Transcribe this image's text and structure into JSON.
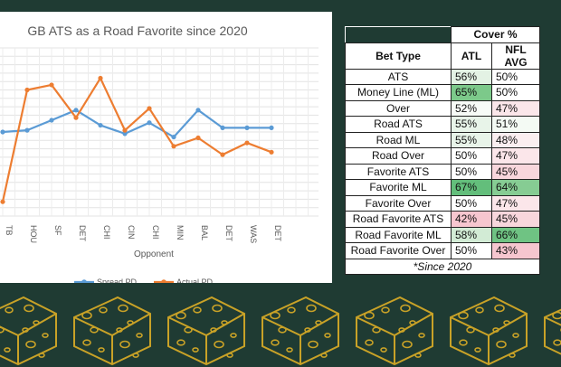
{
  "chart_data": {
    "type": "line",
    "title": "GB ATS as a Road Favorite since 2020",
    "xlabel": "Opponent",
    "ylabel": "",
    "categories": [
      "TB",
      "HOU",
      "SF",
      "DET",
      "CHI",
      "CIN",
      "CHI",
      "MIN",
      "BAL",
      "DET",
      "WAS",
      "DET"
    ],
    "ylim": [
      -10,
      10
    ],
    "grid": true,
    "legend": "bottom",
    "series": [
      {
        "name": "Spread PD",
        "color": "#5b9bd5",
        "values": [
          0.0,
          0.2,
          1.4,
          2.6,
          0.8,
          -0.2,
          1.1,
          -0.6,
          2.6,
          0.5,
          0.5,
          0.5
        ]
      },
      {
        "name": "Actual PD",
        "color": "#ed7d31",
        "values": [
          -8.3,
          5.0,
          5.6,
          1.7,
          6.4,
          0.2,
          2.8,
          -1.7,
          -0.7,
          -2.7,
          -1.3,
          -2.4
        ]
      }
    ]
  },
  "table": {
    "group_header": "Cover %",
    "columns": [
      "Bet Type",
      "ATL",
      "NFL AVG"
    ],
    "rows": [
      {
        "bet": "ATS",
        "atl": "56%",
        "nfl": "50%",
        "atl_color": "#e3f2e4",
        "nfl_color": "#ffffff"
      },
      {
        "bet": "Money Line (ML)",
        "atl": "65%",
        "nfl": "50%",
        "atl_color": "#7cc98a",
        "nfl_color": "#ffffff"
      },
      {
        "bet": "Over",
        "atl": "52%",
        "nfl": "47%",
        "atl_color": "#f7fbf7",
        "nfl_color": "#fbe6ea"
      },
      {
        "bet": "Road ATS",
        "atl": "55%",
        "nfl": "51%",
        "atl_color": "#e8f4e9",
        "nfl_color": "#f4faf4"
      },
      {
        "bet": "Road ML",
        "atl": "55%",
        "nfl": "48%",
        "atl_color": "#e8f4e9",
        "nfl_color": "#fbeef0"
      },
      {
        "bet": "Road Over",
        "atl": "50%",
        "nfl": "47%",
        "atl_color": "#ffffff",
        "nfl_color": "#fbe6ea"
      },
      {
        "bet": "Favorite ATS",
        "atl": "50%",
        "nfl": "45%",
        "atl_color": "#ffffff",
        "nfl_color": "#f8d6dc"
      },
      {
        "bet": "Favorite ML",
        "atl": "67%",
        "nfl": "64%",
        "atl_color": "#63be7b",
        "nfl_color": "#86cc93"
      },
      {
        "bet": "Favorite Over",
        "atl": "50%",
        "nfl": "47%",
        "atl_color": "#ffffff",
        "nfl_color": "#fbe6ea"
      },
      {
        "bet": "Road Favorite ATS",
        "atl": "42%",
        "nfl": "45%",
        "atl_color": "#f6c6cf",
        "nfl_color": "#f8d6dc"
      },
      {
        "bet": "Road Favorite ML",
        "atl": "58%",
        "nfl": "66%",
        "atl_color": "#d2ebd5",
        "nfl_color": "#6fc383"
      },
      {
        "bet": "Road Favorite Over",
        "atl": "50%",
        "nfl": "43%",
        "atl_color": "#ffffff",
        "nfl_color": "#f6c6cf"
      }
    ],
    "footnote": "*Since 2020"
  },
  "colors": {
    "background": "#1f3b33",
    "cheese": "#c9a227"
  }
}
